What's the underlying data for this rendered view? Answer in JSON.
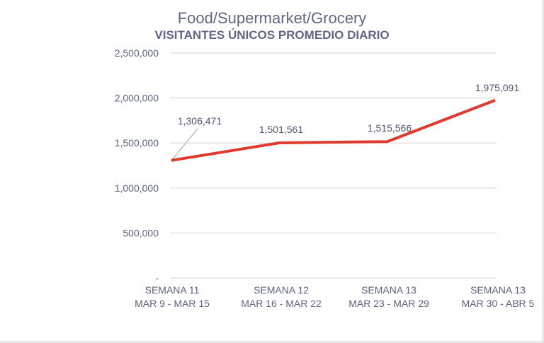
{
  "chart_data": {
    "type": "line",
    "title": "Food/Supermarket/Grocery",
    "subtitle": "VISITANTES ÚNICOS PROMEDIO DIARIO",
    "categories": [
      [
        "SEMANA 11",
        "MAR 9 - MAR 15"
      ],
      [
        "SEMANA 12",
        "MAR 16 - MAR 22"
      ],
      [
        "SEMANA 13",
        "MAR 23 - MAR 29"
      ],
      [
        "SEMANA 13",
        "MAR 30 - ABR 5"
      ]
    ],
    "series": [
      {
        "name": "Visitantes únicos promedio diario",
        "values": [
          1306471,
          1501561,
          1515566,
          1975091
        ],
        "color": "#e03a2f"
      }
    ],
    "data_labels": [
      "1,306,471",
      "1,501,561",
      "1,515,566",
      "1,975,091"
    ],
    "ylim": [
      0,
      2500000
    ],
    "yticks": [
      0,
      500000,
      1000000,
      1500000,
      2000000,
      2500000
    ],
    "ytick_labels": [
      "-",
      "500,000",
      "1,000,000",
      "1,500,000",
      "2,000,000",
      "2,500,000"
    ],
    "grid": true,
    "xlabel": "",
    "ylabel": ""
  }
}
